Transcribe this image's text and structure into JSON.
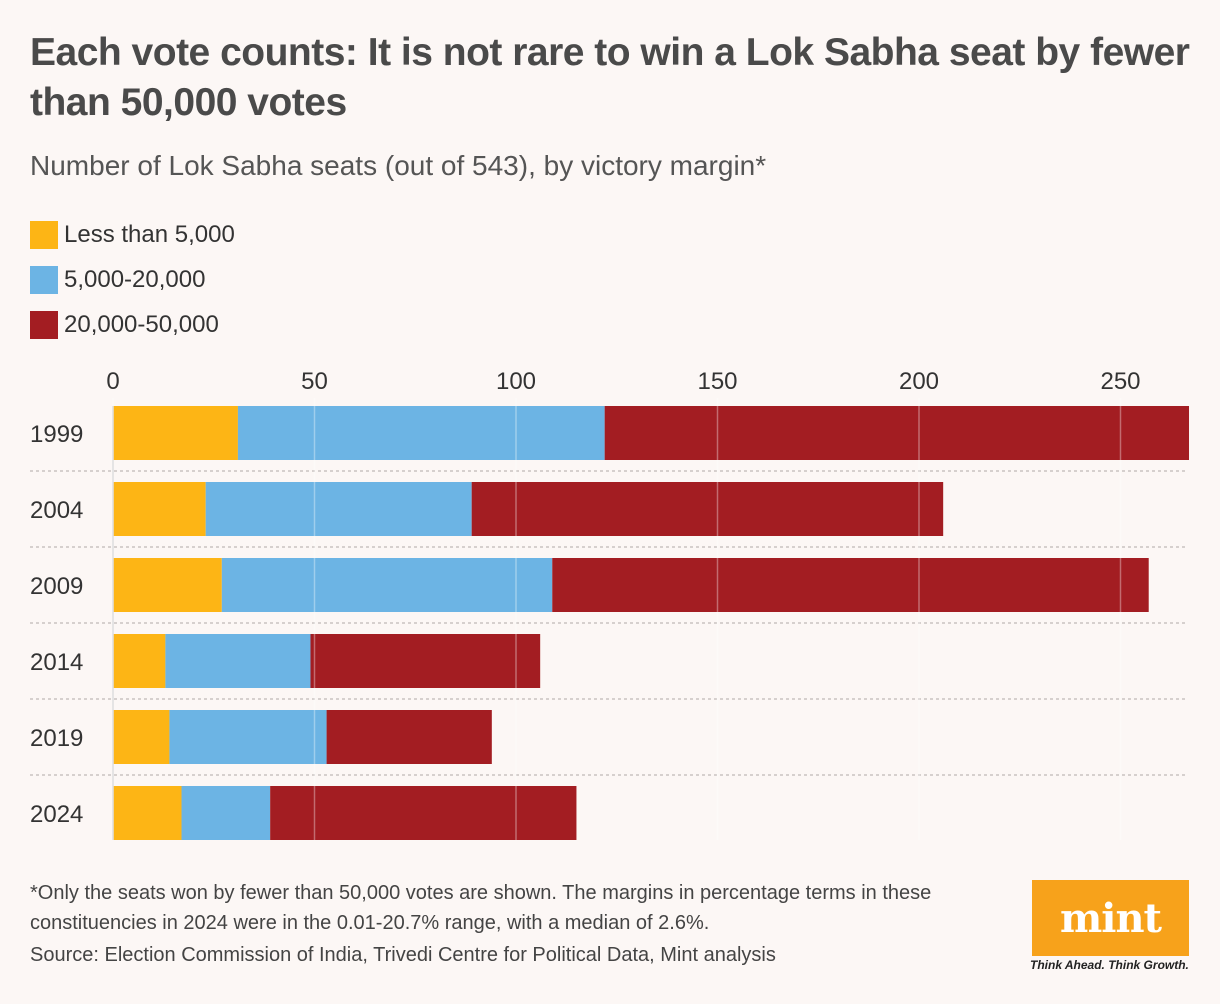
{
  "title": "Each vote counts: It is not rare to win a Lok Sabha seat by fewer than 50,000 votes",
  "subtitle": "Number of Lok Sabha seats (out of 543), by victory margin*",
  "legend": [
    {
      "label": "Less than 5,000",
      "color": "#fdb515"
    },
    {
      "label": "5,000-20,000",
      "color": "#6cb4e4"
    },
    {
      "label": "20,000-50,000",
      "color": "#a31d22"
    }
  ],
  "chart_data": {
    "type": "bar",
    "orientation": "horizontal",
    "stacked": true,
    "categories": [
      "1999",
      "2004",
      "2009",
      "2014",
      "2019",
      "2024"
    ],
    "series": [
      {
        "name": "Less than 5,000",
        "color": "#fdb515",
        "values": [
          31,
          23,
          27,
          13,
          14,
          17
        ]
      },
      {
        "name": "5,000-20,000",
        "color": "#6cb4e4",
        "values": [
          91,
          66,
          82,
          36,
          39,
          22
        ]
      },
      {
        "name": "20,000-50,000",
        "color": "#a31d22",
        "values": [
          145,
          117,
          148,
          57,
          41,
          76
        ]
      }
    ],
    "xticks": [
      "0",
      "50",
      "100",
      "150",
      "200",
      "250"
    ],
    "xlim": [
      0,
      267
    ],
    "title": "Each vote counts: It is not rare to win a Lok Sabha seat by fewer than 50,000 votes",
    "xlabel": "",
    "ylabel": ""
  },
  "footnote": "*Only the seats won by fewer than 50,000 votes are shown. The margins in percentage terms in these constituencies in 2024 were in the 0.01-20.7% range, with a median of 2.6%.",
  "source": "Source: Election Commission of India, Trivedi Centre for Political Data, Mint analysis",
  "logo": {
    "text": "mint",
    "tagline": "Think Ahead. Think Growth."
  }
}
